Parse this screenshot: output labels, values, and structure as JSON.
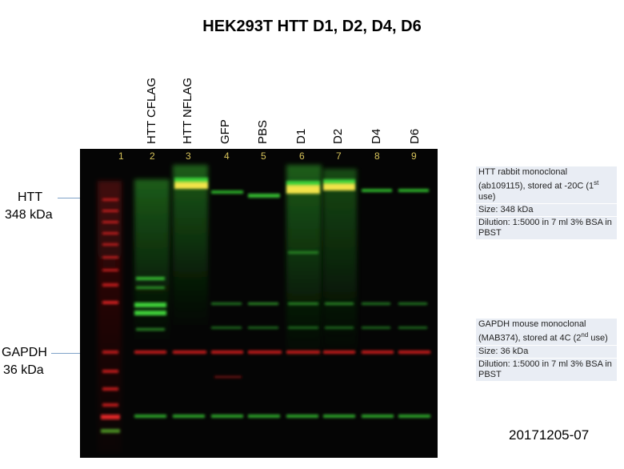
{
  "title": "HEK293T HTT D1, D2, D4, D6",
  "lanes": [
    {
      "number": "1",
      "label": ""
    },
    {
      "number": "2",
      "label": "HTT CFLAG"
    },
    {
      "number": "3",
      "label": "HTT NFLAG"
    },
    {
      "number": "4",
      "label": "GFP"
    },
    {
      "number": "5",
      "label": "PBS"
    },
    {
      "number": "6",
      "label": "D1"
    },
    {
      "number": "7",
      "label": "D2"
    },
    {
      "number": "8",
      "label": "D4"
    },
    {
      "number": "9",
      "label": "D6"
    }
  ],
  "markers": {
    "htt": {
      "name": "HTT",
      "size": "348 kDa"
    },
    "gapdh": {
      "name": "GAPDH",
      "size": "36 kDa"
    }
  },
  "notes": {
    "htt": {
      "antibody_pre": "HTT rabbit monoclonal (ab109115), stored at -20C (1",
      "antibody_sup": "st",
      "antibody_post": " use)",
      "size": "Size: 348 kDa",
      "dilution": "Dilution: 1:5000 in 7 ml 3% BSA in PBST"
    },
    "gapdh": {
      "antibody_pre": "GAPDH mouse monoclonal (MAB374), stored at 4C (2",
      "antibody_sup": "nd",
      "antibody_post": " use)",
      "size": "Size: 36 kDa",
      "dilution": "Dilution: 1:5000 in 7 ml 3% BSA in PBST"
    }
  },
  "image_code": "20171205-07",
  "colors": {
    "green_band": "#3fd23a",
    "red_band": "#c81e1e",
    "yellow_band": "#f3e34a",
    "lane_number": "#d7c35a",
    "leader_line": "#7fa3c8",
    "note_bg": "#e9edf4"
  }
}
